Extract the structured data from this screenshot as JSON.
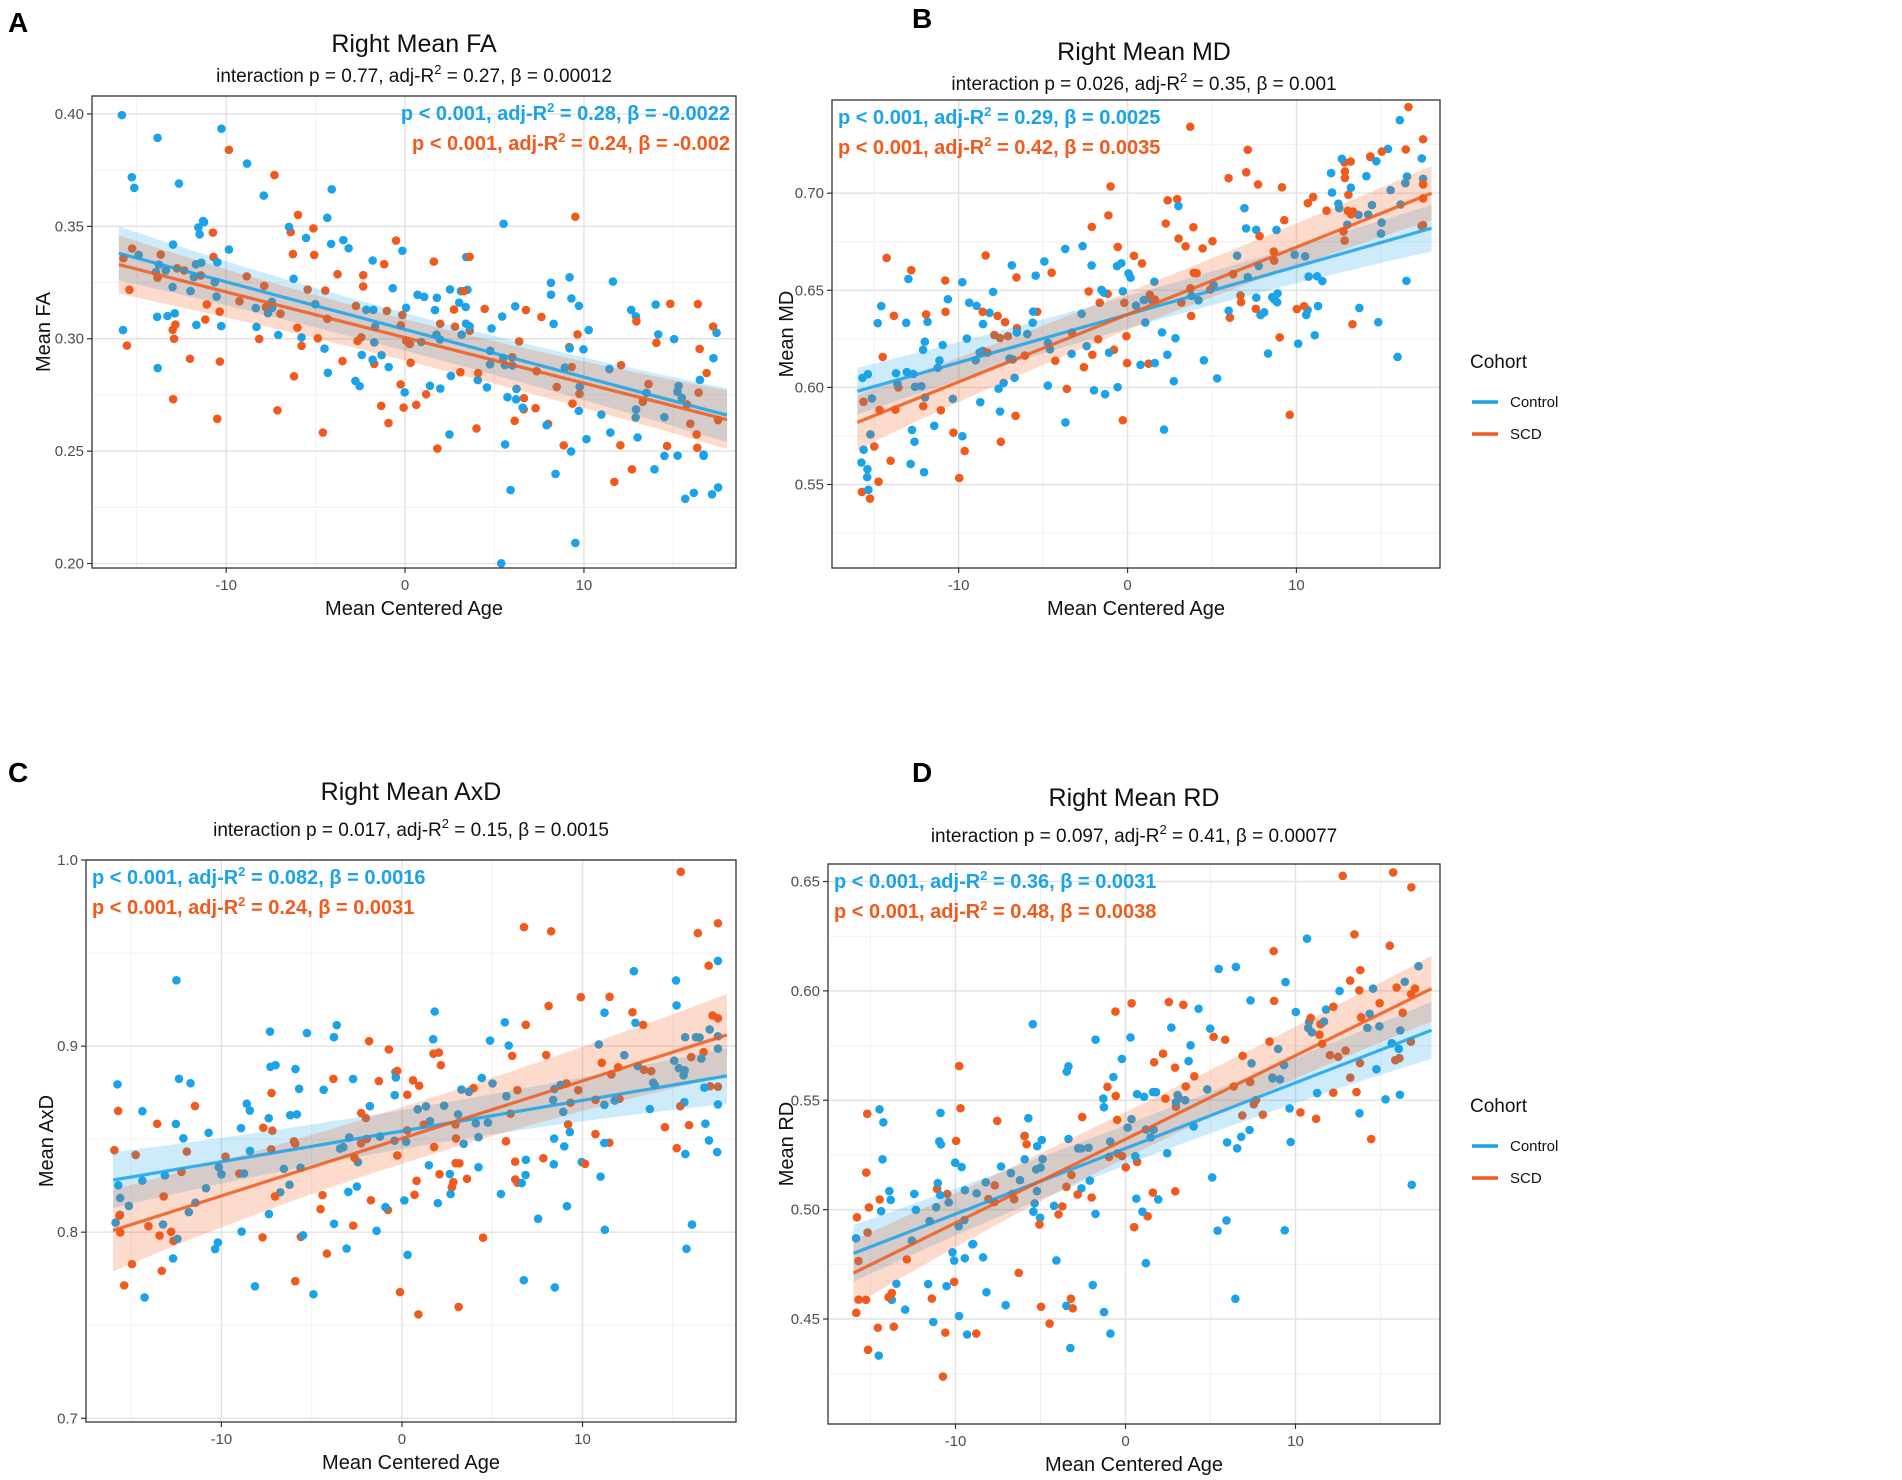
{
  "colors": {
    "control": "#1aa3e8",
    "scd": "#f05a1c"
  },
  "legend": {
    "title": "Cohort",
    "items": [
      "Control",
      "SCD"
    ]
  },
  "chart_data": [
    {
      "panel": "A",
      "type": "scatter",
      "title": "Right Mean FA",
      "subtitle": {
        "pre": "interaction p = 0.77, adj-R",
        "post": " = 0.27, β = 0.00012"
      },
      "xlabel": "Mean Centered Age",
      "ylabel": "Mean FA",
      "xlim": [
        -17.5,
        18.5
      ],
      "ylim": [
        0.198,
        0.408
      ],
      "xticks": [
        -10,
        0,
        10
      ],
      "yticks": [
        0.2,
        0.25,
        0.3,
        0.35,
        0.4
      ],
      "ytick_labels": [
        "0.20",
        "0.25",
        "0.30",
        "0.35",
        "0.40"
      ],
      "annotations": [
        {
          "series": "Control",
          "pre": "p < 0.001, adj-R",
          "post": " = 0.28, β = -0.0022"
        },
        {
          "series": "SCD",
          "pre": "p < 0.001, adj-R",
          "post": " = 0.24, β = -0.002"
        }
      ],
      "fits": [
        {
          "series": "Control",
          "x": [
            -16,
            18
          ],
          "y": [
            0.338,
            0.266
          ],
          "band": [
            0.008,
            0.012
          ]
        },
        {
          "series": "SCD",
          "x": [
            -16,
            18
          ],
          "y": [
            0.333,
            0.264
          ],
          "band": [
            0.009,
            0.013
          ]
        }
      ],
      "seed": 11
    },
    {
      "panel": "B",
      "type": "scatter",
      "title": "Right Mean MD",
      "subtitle": {
        "pre": "interaction p = 0.026, adj-R",
        "post": " = 0.35, β = 0.001"
      },
      "xlabel": "Mean Centered Age",
      "ylabel": "Mean MD",
      "xlim": [
        -17.5,
        18.5
      ],
      "ylim": [
        0.507,
        0.748
      ],
      "xticks": [
        -10,
        0,
        10
      ],
      "yticks": [
        0.55,
        0.6,
        0.65,
        0.7
      ],
      "ytick_labels": [
        "0.55",
        "0.60",
        "0.65",
        "0.70"
      ],
      "annotations": [
        {
          "series": "Control",
          "pre": "p < 0.001, adj-R",
          "post": " = 0.29, β = 0.0025"
        },
        {
          "series": "SCD",
          "pre": "p < 0.001, adj-R",
          "post": " = 0.42, β = 0.0035"
        }
      ],
      "fits": [
        {
          "series": "Control",
          "x": [
            -16,
            18
          ],
          "y": [
            0.598,
            0.682
          ],
          "band": [
            0.008,
            0.012
          ]
        },
        {
          "series": "SCD",
          "x": [
            -16,
            18
          ],
          "y": [
            0.582,
            0.7
          ],
          "band": [
            0.009,
            0.014
          ]
        }
      ],
      "seed": 23
    },
    {
      "panel": "C",
      "type": "scatter",
      "title": "Right Mean AxD",
      "subtitle": {
        "pre": "interaction p = 0.017, adj-R",
        "post": " = 0.15, β = 0.0015"
      },
      "xlabel": "Mean Centered Age",
      "ylabel": "Mean AxD",
      "xlim": [
        -17.5,
        18.5
      ],
      "ylim": [
        0.698,
        1.0
      ],
      "xticks": [
        -10,
        0,
        10
      ],
      "yticks": [
        0.7,
        0.8,
        0.9,
        1.0
      ],
      "ytick_labels": [
        "0.7",
        "0.8",
        "0.9",
        "1.0"
      ],
      "annotations": [
        {
          "series": "Control",
          "pre": "p < 0.001, adj-R",
          "post": " = 0.082, β = 0.0016"
        },
        {
          "series": "SCD",
          "pre": "p < 0.001, adj-R",
          "post": " = 0.24, β = 0.0031"
        }
      ],
      "fits": [
        {
          "series": "Control",
          "x": [
            -16,
            18
          ],
          "y": [
            0.828,
            0.884
          ],
          "band": [
            0.01,
            0.015
          ]
        },
        {
          "series": "SCD",
          "x": [
            -16,
            18
          ],
          "y": [
            0.801,
            0.906
          ],
          "band": [
            0.014,
            0.022
          ]
        }
      ],
      "seed": 37
    },
    {
      "panel": "D",
      "type": "scatter",
      "title": "Right Mean RD",
      "subtitle": {
        "pre": "interaction p = 0.097, adj-R",
        "post": " = 0.41, β = 0.00077"
      },
      "xlabel": "Mean Centered Age",
      "ylabel": "Mean RD",
      "xlim": [
        -17.5,
        18.5
      ],
      "ylim": [
        0.402,
        0.658
      ],
      "xticks": [
        -10,
        0,
        10
      ],
      "yticks": [
        0.45,
        0.5,
        0.55,
        0.6,
        0.65
      ],
      "ytick_labels": [
        "0.45",
        "0.50",
        "0.55",
        "0.60",
        "0.65"
      ],
      "annotations": [
        {
          "series": "Control",
          "pre": "p < 0.001, adj-R",
          "post": " = 0.36, β = 0.0031"
        },
        {
          "series": "SCD",
          "pre": "p < 0.001, adj-R",
          "post": " = 0.48, β = 0.0038"
        }
      ],
      "fits": [
        {
          "series": "Control",
          "x": [
            -16,
            18
          ],
          "y": [
            0.48,
            0.582
          ],
          "band": [
            0.009,
            0.013
          ]
        },
        {
          "series": "SCD",
          "x": [
            -16,
            18
          ],
          "y": [
            0.471,
            0.601
          ],
          "band": [
            0.01,
            0.015
          ]
        }
      ],
      "seed": 53
    }
  ]
}
